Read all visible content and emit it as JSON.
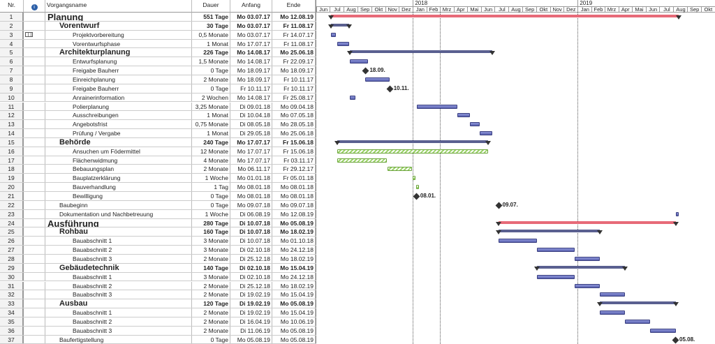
{
  "headers": {
    "nr": "Nr.",
    "info_icon": "info-icon",
    "name": "Vorgangsname",
    "duration": "Dauer",
    "start": "Anfang",
    "end": "Ende"
  },
  "timeline": {
    "years": [
      {
        "label": "2018",
        "date": "2018-01-01"
      },
      {
        "label": "2019",
        "date": "2019-01-01"
      }
    ],
    "months": [
      "Jun",
      "Jul",
      "Aug",
      "Sep",
      "Okt",
      "Nov",
      "Dez",
      "Jan",
      "Feb",
      "Mrz",
      "Apr",
      "Mai",
      "Jun",
      "Jul",
      "Aug",
      "Sep",
      "Okt",
      "Nov",
      "Dez",
      "Jan",
      "Feb",
      "Mrz",
      "Apr",
      "Mai",
      "Jun",
      "Jul",
      "Aug",
      "Sep",
      "Okt"
    ],
    "first_month": "2017-06-01",
    "marker_dates": [
      "2018-01-01",
      "2018-03-01",
      "2019-01-01"
    ]
  },
  "colors": {
    "task": "#6a72c0",
    "summary": "#5a6090",
    "project_summary": "#e76a78",
    "green_task": "#9cd36a"
  },
  "tasks": [
    {
      "nr": "1",
      "name": "Planung",
      "duration": "551 Tage",
      "start": "Mo 03.07.17",
      "end": "Mo 12.08.19",
      "level": "l0",
      "type": "summary0"
    },
    {
      "nr": "2",
      "name": "Vorentwurf",
      "duration": "30 Tage",
      "start": "Mo 03.07.17",
      "end": "Fr 11.08.17",
      "level": "l1s",
      "type": "summary"
    },
    {
      "nr": "3",
      "name": "Projektvorbereitung",
      "duration": "0,5 Monate",
      "start": "Mo 03.07.17",
      "end": "Fr 14.07.17",
      "level": "l2",
      "type": "task",
      "icon": "table-icon"
    },
    {
      "nr": "4",
      "name": "Vorentwurfsphase",
      "duration": "1 Monat",
      "start": "Mo 17.07.17",
      "end": "Fr 11.08.17",
      "level": "l2",
      "type": "task"
    },
    {
      "nr": "5",
      "name": "Architekturplanung",
      "duration": "226 Tage",
      "start": "Mo 14.08.17",
      "end": "Mo 25.06.18",
      "level": "l1s",
      "type": "summary"
    },
    {
      "nr": "6",
      "name": "Entwurfsplanung",
      "duration": "1,5 Monate",
      "start": "Mo 14.08.17",
      "end": "Fr 22.09.17",
      "level": "l2",
      "type": "task"
    },
    {
      "nr": "7",
      "name": "Freigabe Bauherr",
      "duration": "0 Tage",
      "start": "Mo 18.09.17",
      "end": "Mo 18.09.17",
      "level": "l2",
      "type": "milestone",
      "ms_label": "18.09."
    },
    {
      "nr": "8",
      "name": "Einreichplanung",
      "duration": "2 Monate",
      "start": "Mo 18.09.17",
      "end": "Fr 10.11.17",
      "level": "l2",
      "type": "task"
    },
    {
      "nr": "9",
      "name": "Freigabe Bauherr",
      "duration": "0 Tage",
      "start": "Fr 10.11.17",
      "end": "Fr 10.11.17",
      "level": "l2",
      "type": "milestone",
      "ms_label": "10.11."
    },
    {
      "nr": "10",
      "name": "Anrainerinformation",
      "duration": "2 Wochen",
      "start": "Mo 14.08.17",
      "end": "Fr 25.08.17",
      "level": "l2",
      "type": "task"
    },
    {
      "nr": "11",
      "name": "Polierplanung",
      "duration": "3,25 Monate",
      "start": "Di 09.01.18",
      "end": "Mo 09.04.18",
      "level": "l2",
      "type": "task"
    },
    {
      "nr": "12",
      "name": "Ausschreibungen",
      "duration": "1 Monat",
      "start": "Di 10.04.18",
      "end": "Mo 07.05.18",
      "level": "l2",
      "type": "task"
    },
    {
      "nr": "13",
      "name": "Angebotsfrist",
      "duration": "0,75 Monate",
      "start": "Di 08.05.18",
      "end": "Mo 28.05.18",
      "level": "l2",
      "type": "task"
    },
    {
      "nr": "14",
      "name": "Prüfung / Vergabe",
      "duration": "1 Monat",
      "start": "Di 29.05.18",
      "end": "Mo 25.06.18",
      "level": "l2",
      "type": "task"
    },
    {
      "nr": "15",
      "name": "Behörde",
      "duration": "240 Tage",
      "start": "Mo 17.07.17",
      "end": "Fr 15.06.18",
      "level": "l1s",
      "type": "summary"
    },
    {
      "nr": "16",
      "name": "Ansuchen um Födermittel",
      "duration": "12 Monate",
      "start": "Mo 17.07.17",
      "end": "Fr 15.06.18",
      "level": "l2",
      "type": "green"
    },
    {
      "nr": "17",
      "name": "Flächenwidmung",
      "duration": "4 Monate",
      "start": "Mo 17.07.17",
      "end": "Fr 03.11.17",
      "level": "l2",
      "type": "green"
    },
    {
      "nr": "18",
      "name": "Bebauungsplan",
      "duration": "2 Monate",
      "start": "Mo 06.11.17",
      "end": "Fr 29.12.17",
      "level": "l2",
      "type": "green"
    },
    {
      "nr": "19",
      "name": "Bauplatzerklärung",
      "duration": "1 Woche",
      "start": "Mo 01.01.18",
      "end": "Fr 05.01.18",
      "level": "l2",
      "type": "green"
    },
    {
      "nr": "20",
      "name": "Bauverhandlung",
      "duration": "1 Tag",
      "start": "Mo 08.01.18",
      "end": "Mo 08.01.18",
      "level": "l2",
      "type": "green"
    },
    {
      "nr": "21",
      "name": "Bewilligung",
      "duration": "0 Tage",
      "start": "Mo 08.01.18",
      "end": "Mo 08.01.18",
      "level": "l2",
      "type": "milestone",
      "ms_label": "08.01."
    },
    {
      "nr": "22",
      "name": "Baubeginn",
      "duration": "0 Tage",
      "start": "Mo 09.07.18",
      "end": "Mo 09.07.18",
      "level": "l1",
      "type": "milestone",
      "ms_label": "09.07."
    },
    {
      "nr": "23",
      "name": "Dokumentation und Nachbetreuung",
      "duration": "1 Woche",
      "start": "Di 06.08.19",
      "end": "Mo 12.08.19",
      "level": "l1",
      "type": "task"
    },
    {
      "nr": "24",
      "name": "Ausführung",
      "duration": "280 Tage",
      "start": "Di 10.07.18",
      "end": "Mo 05.08.19",
      "level": "l0",
      "type": "summary0"
    },
    {
      "nr": "25",
      "name": "Rohbau",
      "duration": "160 Tage",
      "start": "Di 10.07.18",
      "end": "Mo 18.02.19",
      "level": "l1s",
      "type": "summary"
    },
    {
      "nr": "26",
      "name": "Bauabschnitt 1",
      "duration": "3 Monate",
      "start": "Di 10.07.18",
      "end": "Mo 01.10.18",
      "level": "l2",
      "type": "task"
    },
    {
      "nr": "27",
      "name": "Bauabschnitt 2",
      "duration": "3 Monate",
      "start": "Di 02.10.18",
      "end": "Mo 24.12.18",
      "level": "l2",
      "type": "task"
    },
    {
      "nr": "28",
      "name": "Bauabschnitt 3",
      "duration": "2 Monate",
      "start": "Di 25.12.18",
      "end": "Mo 18.02.19",
      "level": "l2",
      "type": "task"
    },
    {
      "nr": "29",
      "name": "Gebäudetechnik",
      "duration": "140 Tage",
      "start": "Di 02.10.18",
      "end": "Mo 15.04.19",
      "level": "l1s",
      "type": "summary"
    },
    {
      "nr": "30",
      "name": "Bauabschnitt 1",
      "duration": "3 Monate",
      "start": "Di 02.10.18",
      "end": "Mo 24.12.18",
      "level": "l2",
      "type": "task"
    },
    {
      "nr": "31",
      "name": "Bauabschnitt 2",
      "duration": "2 Monate",
      "start": "Di 25.12.18",
      "end": "Mo 18.02.19",
      "level": "l2",
      "type": "task"
    },
    {
      "nr": "32",
      "name": "Bauabschnitt 3",
      "duration": "2 Monate",
      "start": "Di 19.02.19",
      "end": "Mo 15.04.19",
      "level": "l2",
      "type": "task"
    },
    {
      "nr": "33",
      "name": "Ausbau",
      "duration": "120 Tage",
      "start": "Di 19.02.19",
      "end": "Mo 05.08.19",
      "level": "l1s",
      "type": "summary"
    },
    {
      "nr": "34",
      "name": "Bauabschnitt 1",
      "duration": "2 Monate",
      "start": "Di 19.02.19",
      "end": "Mo 15.04.19",
      "level": "l2",
      "type": "task"
    },
    {
      "nr": "35",
      "name": "Bauabschnitt 2",
      "duration": "2 Monate",
      "start": "Di 16.04.19",
      "end": "Mo 10.06.19",
      "level": "l2",
      "type": "task"
    },
    {
      "nr": "36",
      "name": "Bauabschnitt 3",
      "duration": "2 Monate",
      "start": "Di 11.06.19",
      "end": "Mo 05.08.19",
      "level": "l2",
      "type": "task"
    },
    {
      "nr": "37",
      "name": "Baufertigstellung",
      "duration": "0 Tage",
      "start": "Mo 05.08.19",
      "end": "Mo 05.08.19",
      "level": "l1",
      "type": "milestone",
      "ms_label": "05.08."
    }
  ]
}
